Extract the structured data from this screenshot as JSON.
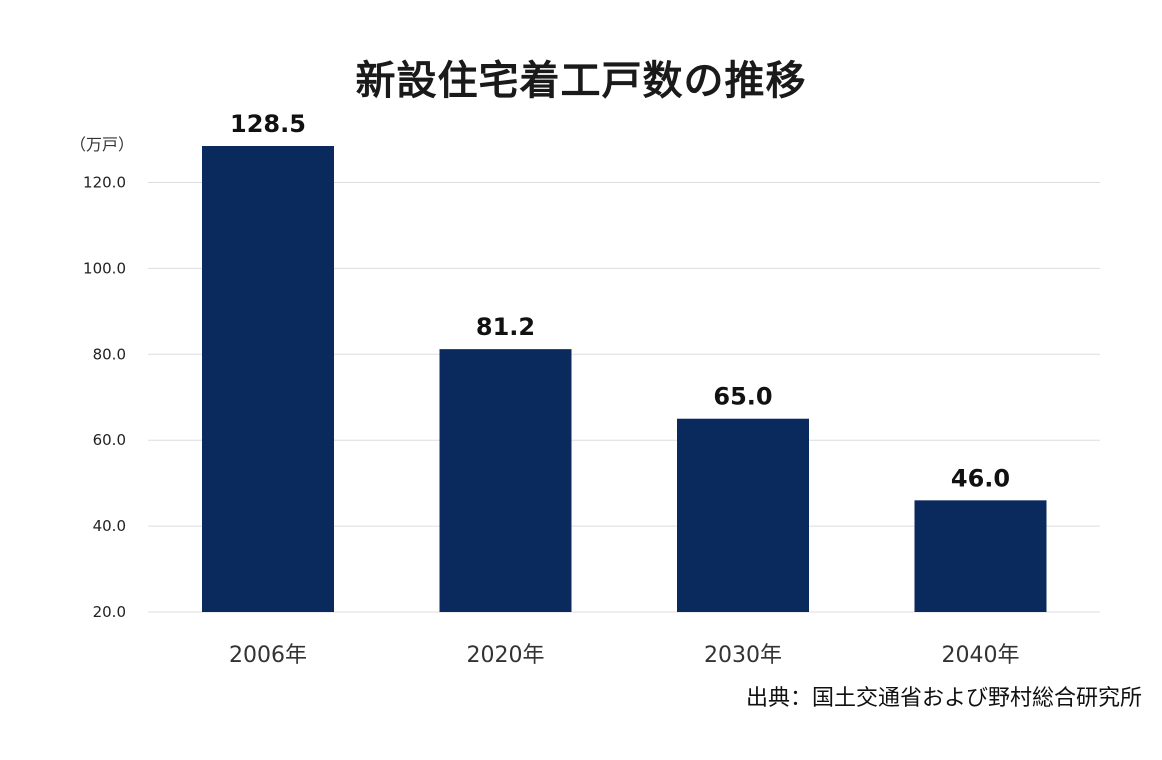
{
  "chart_data": {
    "type": "bar",
    "title": "新設住宅着工戸数の推移",
    "unit_label": "（万戸）",
    "categories": [
      "2006年",
      "2020年",
      "2030年",
      "2040年"
    ],
    "values": [
      128.5,
      81.2,
      65.0,
      46.0
    ],
    "value_labels": [
      "128.5",
      "81.2",
      "65.0",
      "46.0"
    ],
    "ylim": [
      20,
      128.5
    ],
    "yticks": [
      20,
      40,
      60,
      80,
      100,
      120
    ],
    "ytick_labels": [
      "20.0",
      "40.0",
      "60.0",
      "80.0",
      "100.0",
      "120.0"
    ],
    "grid": true,
    "bar_color": "#0a2a5e",
    "grid_color": "#dddddd"
  },
  "source": "出典：国土交通省および野村総合研究所"
}
